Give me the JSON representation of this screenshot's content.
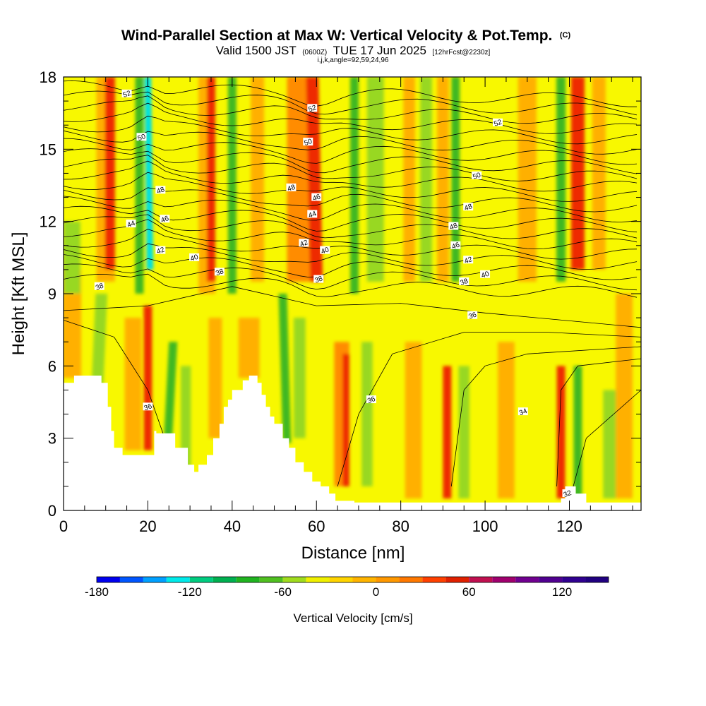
{
  "title": {
    "main": "Wind-Parallel Section at Max W: Vertical Velocity & Pot.Temp.",
    "copyright": "(C)",
    "valid_prefix": "Valid 1500 JST",
    "valid_utc": "(0600Z)",
    "valid_date": "TUE 17 Jun 2025",
    "forecast": "[12hrFcst@2230z]",
    "indices": "i,j,k,angle=92,59,24,96"
  },
  "chart_data": {
    "type": "heatmap",
    "xlabel": "Distance [nm]",
    "ylabel": "Height [Kft MSL]",
    "xlim": [
      0,
      137
    ],
    "ylim": [
      0,
      18
    ],
    "x_ticks": [
      0,
      20,
      40,
      60,
      80,
      100,
      120
    ],
    "y_ticks": [
      0,
      3,
      6,
      9,
      12,
      15,
      18
    ],
    "x_minor_step": 5,
    "y_minor_step": 1,
    "terrain": [
      [
        0,
        5.3
      ],
      [
        2.5,
        5.3
      ],
      [
        2.5,
        5.6
      ],
      [
        9,
        5.6
      ],
      [
        9,
        5.3
      ],
      [
        10.5,
        5.3
      ],
      [
        10.5,
        4.3
      ],
      [
        11.3,
        4.3
      ],
      [
        11.3,
        3.3
      ],
      [
        12,
        3.3
      ],
      [
        12,
        2.6
      ],
      [
        14,
        2.6
      ],
      [
        14,
        2.3
      ],
      [
        21.5,
        2.3
      ],
      [
        21.5,
        3.3
      ],
      [
        22,
        3.3
      ],
      [
        22,
        3.2
      ],
      [
        26.5,
        3.2
      ],
      [
        26.5,
        2.6
      ],
      [
        29.5,
        2.6
      ],
      [
        29.5,
        1.9
      ],
      [
        31,
        1.9
      ],
      [
        31,
        1.6
      ],
      [
        32,
        1.6
      ],
      [
        32,
        1.9
      ],
      [
        34,
        1.9
      ],
      [
        34,
        2.3
      ],
      [
        35.5,
        2.3
      ],
      [
        35.5,
        3.0
      ],
      [
        37,
        3.0
      ],
      [
        37,
        3.6
      ],
      [
        38,
        3.6
      ],
      [
        38,
        4.3
      ],
      [
        39,
        4.3
      ],
      [
        39,
        4.6
      ],
      [
        40,
        4.6
      ],
      [
        40,
        5.0
      ],
      [
        42.5,
        5.0
      ],
      [
        42.5,
        5.4
      ],
      [
        44,
        5.4
      ],
      [
        44,
        5.6
      ],
      [
        46,
        5.6
      ],
      [
        46,
        5.3
      ],
      [
        47,
        5.3
      ],
      [
        47,
        4.8
      ],
      [
        48,
        4.8
      ],
      [
        48,
        4.3
      ],
      [
        49,
        4.3
      ],
      [
        49,
        3.9
      ],
      [
        50,
        3.9
      ],
      [
        50,
        3.6
      ],
      [
        52,
        3.6
      ],
      [
        52,
        3.0
      ],
      [
        53.5,
        3.0
      ],
      [
        53.5,
        2.6
      ],
      [
        55,
        2.6
      ],
      [
        55,
        2.0
      ],
      [
        57,
        2.0
      ],
      [
        57,
        1.6
      ],
      [
        59,
        1.6
      ],
      [
        59,
        1.2
      ],
      [
        61,
        1.2
      ],
      [
        61,
        1.0
      ],
      [
        63,
        1.0
      ],
      [
        63,
        0.7
      ],
      [
        64.5,
        0.7
      ],
      [
        64.5,
        0.4
      ],
      [
        69,
        0.4
      ],
      [
        69,
        0.33
      ],
      [
        118,
        0.33
      ],
      [
        118,
        0.5
      ],
      [
        119,
        0.5
      ],
      [
        119,
        1.0
      ],
      [
        121.5,
        1.0
      ],
      [
        121.5,
        0.7
      ],
      [
        124,
        0.7
      ],
      [
        124,
        0.33
      ],
      [
        137,
        0.33
      ]
    ],
    "colorbar": {
      "label": "Vertical Velocity [cm/s]",
      "min": -180,
      "max": 150,
      "step": 15,
      "tick_values": [
        -180,
        -120,
        -60,
        0,
        60,
        120
      ],
      "tick_labels": [
        "-180",
        "-120",
        "-60",
        "0",
        "60",
        "120"
      ],
      "colors": [
        "#0000ee",
        "#0055ff",
        "#00a0ff",
        "#00eaea",
        "#00cc80",
        "#00b050",
        "#20b420",
        "#50c020",
        "#a0dc1e",
        "#f0f000",
        "#ffd400",
        "#ffb400",
        "#ff9800",
        "#ff7800",
        "#ff4000",
        "#e02000",
        "#c01050",
        "#a0006e",
        "#700090",
        "#500090",
        "#300090",
        "#200080"
      ]
    },
    "theta_contour_labels": [
      {
        "text": "52",
        "x": 15,
        "y": 17.3
      },
      {
        "text": "52",
        "x": 59,
        "y": 16.7
      },
      {
        "text": "52",
        "x": 103,
        "y": 16.1
      },
      {
        "text": "50",
        "x": 18.5,
        "y": 15.5
      },
      {
        "text": "50",
        "x": 58,
        "y": 15.3
      },
      {
        "text": "50",
        "x": 98,
        "y": 13.9
      },
      {
        "text": "48",
        "x": 23,
        "y": 13.3
      },
      {
        "text": "48",
        "x": 54,
        "y": 13.4
      },
      {
        "text": "48",
        "x": 96,
        "y": 12.6
      },
      {
        "text": "48",
        "x": 92.5,
        "y": 11.8
      },
      {
        "text": "46",
        "x": 24,
        "y": 12.1
      },
      {
        "text": "46",
        "x": 60,
        "y": 13.0
      },
      {
        "text": "46",
        "x": 93,
        "y": 11.0
      },
      {
        "text": "44",
        "x": 16,
        "y": 11.9
      },
      {
        "text": "44",
        "x": 59,
        "y": 12.3
      },
      {
        "text": "42",
        "x": 23,
        "y": 10.8
      },
      {
        "text": "42",
        "x": 57,
        "y": 11.1
      },
      {
        "text": "42",
        "x": 96,
        "y": 10.4
      },
      {
        "text": "40",
        "x": 31,
        "y": 10.5
      },
      {
        "text": "40",
        "x": 62,
        "y": 10.8
      },
      {
        "text": "40",
        "x": 100,
        "y": 9.8
      },
      {
        "text": "38",
        "x": 8.5,
        "y": 9.3
      },
      {
        "text": "38",
        "x": 37,
        "y": 9.9
      },
      {
        "text": "38",
        "x": 60.5,
        "y": 9.6
      },
      {
        "text": "38",
        "x": 95,
        "y": 9.5
      },
      {
        "text": "36",
        "x": 97,
        "y": 8.1
      },
      {
        "text": "36",
        "x": 73,
        "y": 4.6
      },
      {
        "text": "36",
        "x": 20,
        "y": 4.3
      },
      {
        "text": "34",
        "x": 109,
        "y": 4.1
      },
      {
        "text": "32",
        "x": 119.5,
        "y": 0.7
      }
    ]
  }
}
